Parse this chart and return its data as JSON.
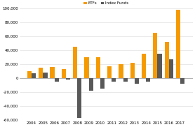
{
  "years": [
    2004,
    2005,
    2006,
    2007,
    2008,
    2009,
    2010,
    2011,
    2012,
    2013,
    2014,
    2015,
    2016,
    2017
  ],
  "etfs": [
    10000,
    15000,
    16000,
    13000,
    45000,
    30000,
    30000,
    17000,
    20000,
    22000,
    35000,
    65000,
    52000,
    98000
  ],
  "index_funds": [
    7000,
    8000,
    -5000,
    -2000,
    -57000,
    -18000,
    -15000,
    -5000,
    -5000,
    -8000,
    -5000,
    35000,
    27000,
    -8000
  ],
  "etf_color": "#f59a00",
  "index_color": "#595959",
  "legend_etf": "ETFs",
  "legend_idx": "Index Funds",
  "ylim": [
    -60000,
    100000
  ],
  "yticks": [
    -60000,
    -40000,
    -20000,
    0,
    20000,
    40000,
    60000,
    80000,
    100000
  ],
  "ytick_labels": [
    "-60,000",
    "-40,000",
    "-20,000",
    "0",
    "20,000",
    "40,000",
    "60,000",
    "80,000",
    "100,000"
  ],
  "bar_width": 0.38,
  "bg_color": "#ffffff",
  "grid_color": "#d9d9d9"
}
